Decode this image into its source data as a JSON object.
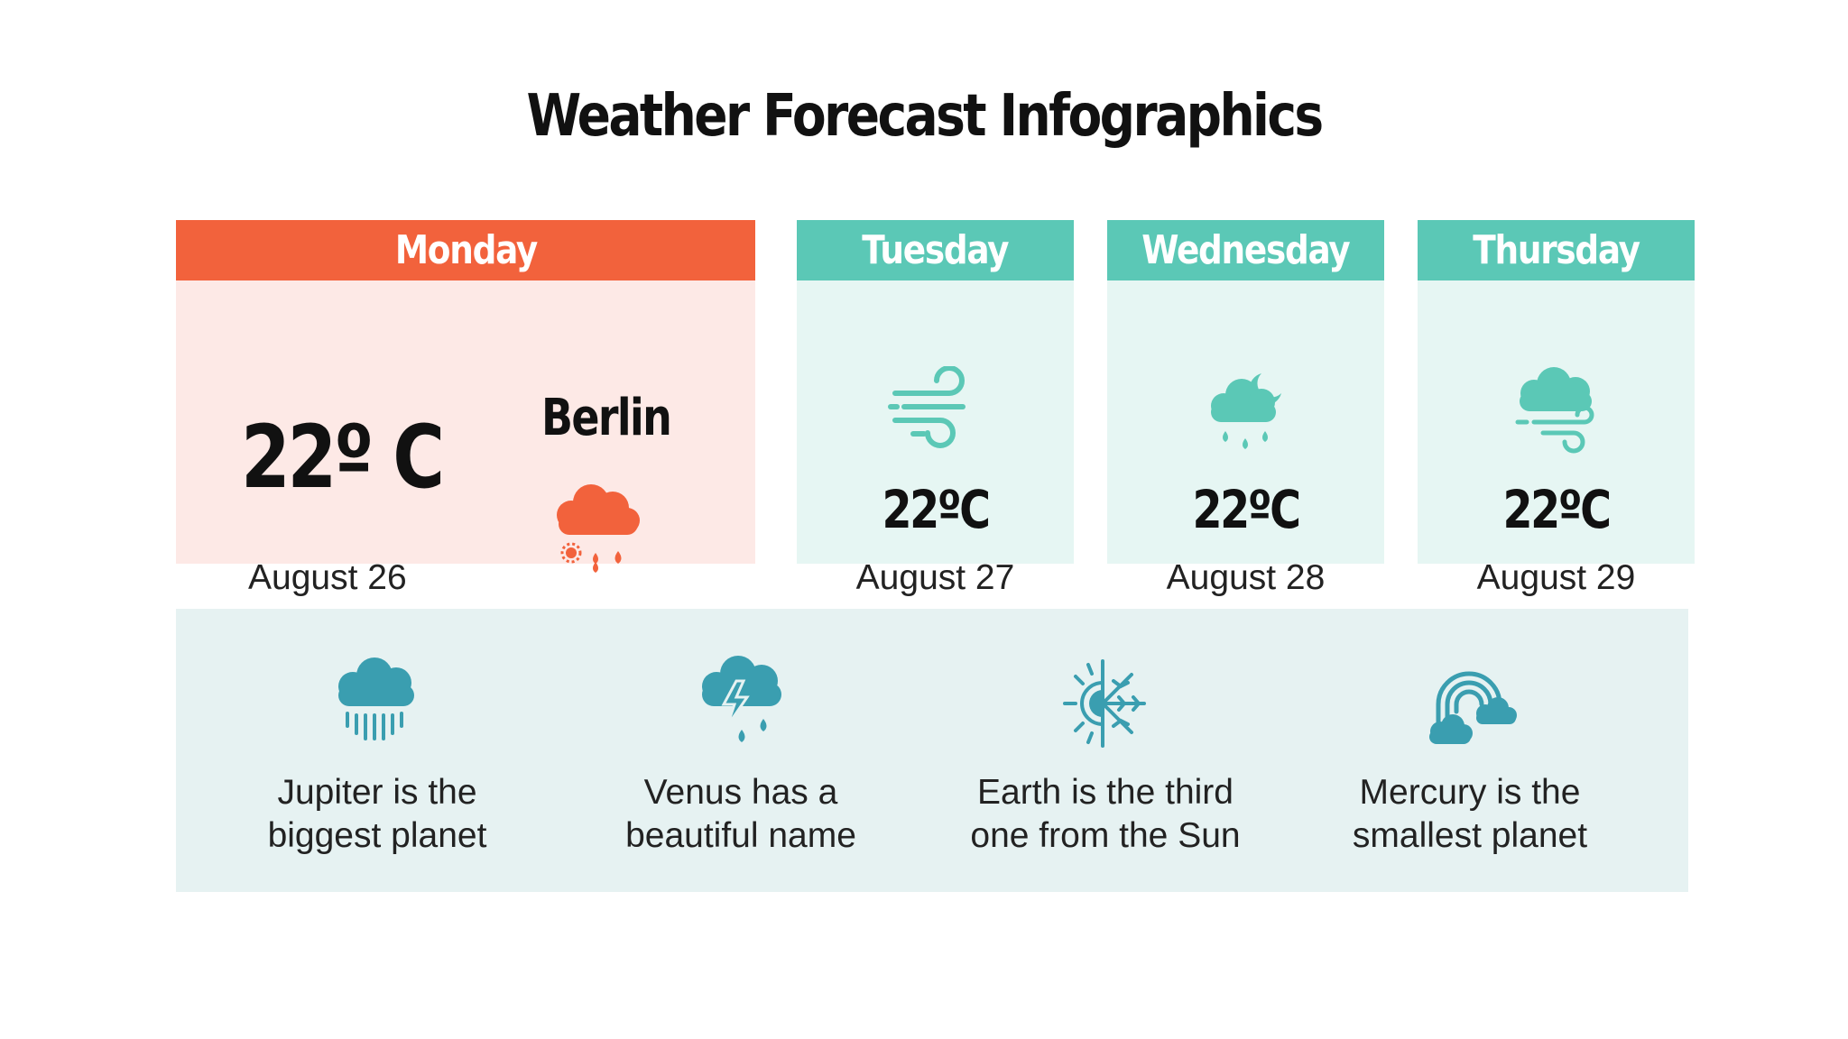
{
  "title": "Weather Forecast Infographics",
  "colors": {
    "monday_accent": "#f2623c",
    "monday_bg": "#fde9e6",
    "teal_accent": "#5bc8b6",
    "teal_bg": "#e6f6f3",
    "dark_teal": "#3a9eb0",
    "panel_bg": "#e6f2f2"
  },
  "days": [
    {
      "name": "Monday",
      "temp": "22º C",
      "city": "Berlin",
      "date": "August 26",
      "icon": "cloud-rain-snow-icon"
    },
    {
      "name": "Tuesday",
      "temp": "22ºC",
      "date": "August 27",
      "icon": "wind-icon"
    },
    {
      "name": "Wednesday",
      "temp": "22ºC",
      "date": "August 28",
      "icon": "cloud-rain-moon-icon"
    },
    {
      "name": "Thursday",
      "temp": "22ºC",
      "date": "August 29",
      "icon": "cloud-wind-icon"
    }
  ],
  "facts": [
    {
      "line1": "Jupiter is the",
      "line2": "biggest planet",
      "icon": "heavy-rain-icon"
    },
    {
      "line1": "Venus has a",
      "line2": "beautiful name",
      "icon": "thunderstorm-icon"
    },
    {
      "line1": "Earth is the third",
      "line2": "one from the Sun",
      "icon": "sun-snowflake-icon"
    },
    {
      "line1": "Mercury is the",
      "line2": "smallest planet",
      "icon": "rainbow-clouds-icon"
    }
  ]
}
